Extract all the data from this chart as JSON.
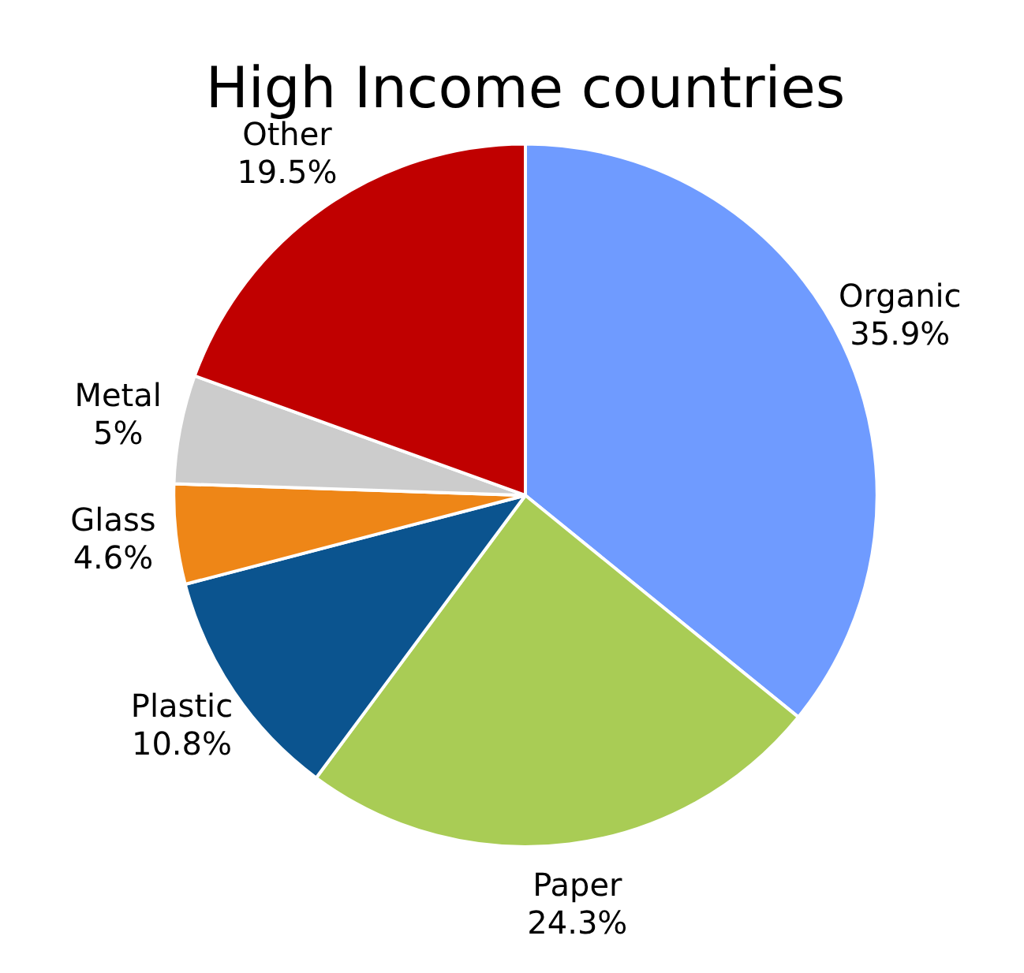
{
  "chart_data": {
    "type": "pie",
    "title": "High Income countries",
    "categories": [
      "Organic",
      "Paper",
      "Plastic",
      "Glass",
      "Metal",
      "Other"
    ],
    "values": [
      35.9,
      24.3,
      10.8,
      4.6,
      5,
      19.5
    ],
    "value_labels": [
      "35.9%",
      "24.3%",
      "10.8%",
      "4.6%",
      "5%",
      "19.5%"
    ],
    "colors": [
      "#6f9bff",
      "#a9cc55",
      "#0b548f",
      "#ee8617",
      "#cccccc",
      "#c00000"
    ],
    "legend": false
  }
}
